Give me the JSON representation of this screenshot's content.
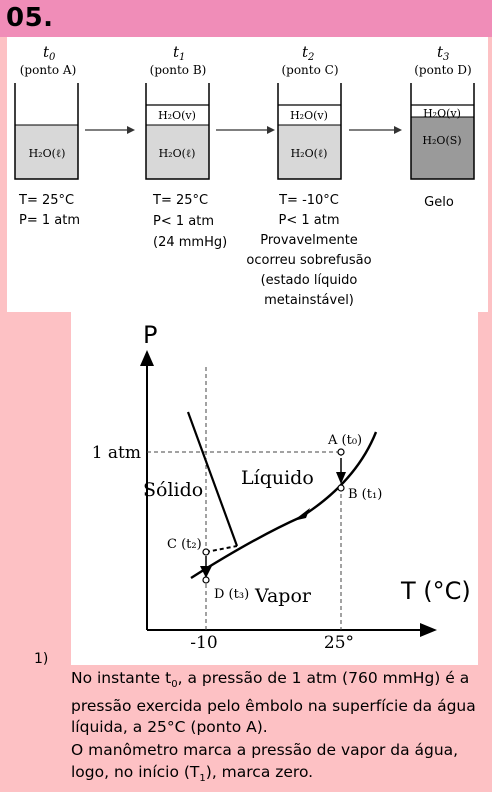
{
  "question_number": "05.",
  "stages": [
    {
      "time": "t",
      "sub": "0",
      "point": "(ponto A)",
      "layers": [
        "H₂O(ℓ)"
      ],
      "conditions": [
        "T= 25°C",
        "P= 1 atm"
      ]
    },
    {
      "time": "t",
      "sub": "1",
      "point": "(ponto B)",
      "layers": [
        "H₂O(v)",
        "H₂O(ℓ)"
      ],
      "conditions": [
        "T= 25°C",
        "P< 1 atm",
        "(24 mmHg)"
      ]
    },
    {
      "time": "t",
      "sub": "2",
      "point": "(ponto C)",
      "layers": [
        "H₂O(v)",
        "H₂O(ℓ)"
      ],
      "conditions": [
        "T= -10°C",
        "P< 1 atm",
        "Provavelmente",
        "ocorreu sobrefusão",
        "(estado líquido",
        "metainstável)"
      ]
    },
    {
      "time": "t",
      "sub": "3",
      "point": "(ponto D)",
      "layers": [
        "H₂O(v)",
        "H₂O(S)"
      ],
      "conditions": [
        "Gelo"
      ]
    }
  ],
  "phase_diagram": {
    "y_axis_label": "P",
    "x_axis_label": "T (°C)",
    "y_tick": "1 atm",
    "x_ticks": [
      "-10",
      "25°"
    ],
    "regions": {
      "solid": "Sólido",
      "liquid": "Líquido",
      "vapor": "Vapor"
    },
    "points": [
      {
        "id": "A",
        "label": "A (t₀)",
        "t": 25,
        "p": "1 atm"
      },
      {
        "id": "B",
        "label": "B (t₁)",
        "t": 25,
        "p": "24 mmHg"
      },
      {
        "id": "C",
        "label": "C (t₂)",
        "t": -10
      },
      {
        "id": "D",
        "label": "D (t₃)",
        "t": -10
      }
    ]
  },
  "item_number": "1)",
  "paragraph1_parts": [
    "No instante t",
    "0",
    ", a pressão de 1 atm (760 mmHg) é a pressão exercida pelo êmbolo na superfície da água líquida, a 25°C (ponto A)."
  ],
  "paragraph2_parts": [
    "O manômetro marca a pressão de vapor da água, logo, no início (T",
    "1",
    "), marca zero."
  ],
  "colors": {
    "background": "#fdc1c4",
    "title_bar": "#f08db8",
    "liquid": "#d8d8d8",
    "ice": "#9a9a9a"
  }
}
